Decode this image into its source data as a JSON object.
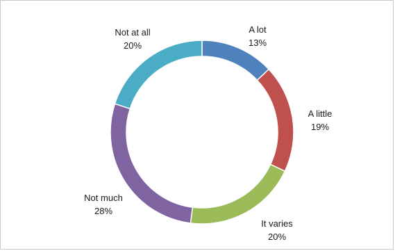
{
  "chart_data": {
    "type": "pie",
    "donut": true,
    "title": "",
    "legend": "none",
    "categories": [
      "A lot",
      "A little",
      "It varies",
      "Not much",
      "Not at all"
    ],
    "values": [
      13,
      19,
      20,
      28,
      20
    ],
    "percent_labels": [
      "13%",
      "19%",
      "20%",
      "28%",
      "20%"
    ],
    "colors": [
      "#4f81bd",
      "#c0504d",
      "#9bbb59",
      "#8064a2",
      "#4bacc6"
    ]
  }
}
